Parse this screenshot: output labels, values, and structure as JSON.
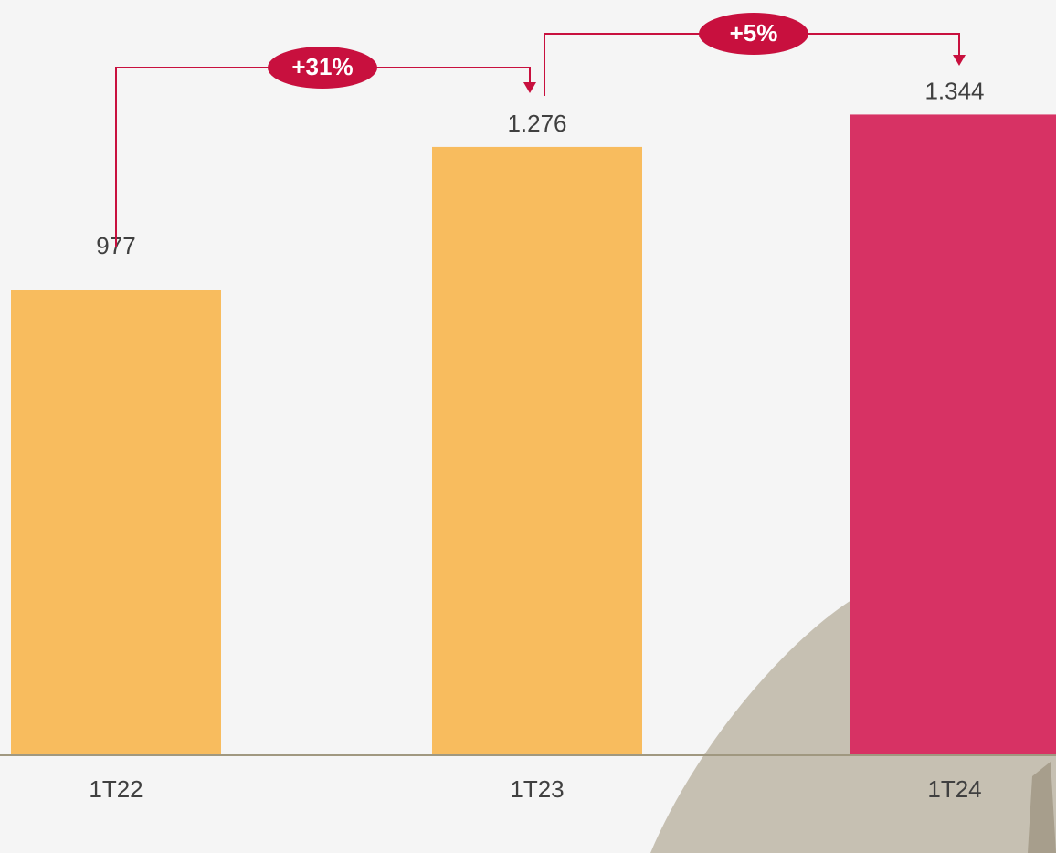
{
  "chart_data": {
    "type": "bar",
    "categories": [
      "1T22",
      "1T23",
      "1T24"
    ],
    "values": [
      977,
      1276,
      1344
    ],
    "value_labels": [
      "977",
      "1.276",
      "1.344"
    ],
    "colors": [
      "#f8bc5e",
      "#f8bc5e",
      "#d73264"
    ],
    "annotations": [
      "+31%",
      "+5%"
    ]
  }
}
